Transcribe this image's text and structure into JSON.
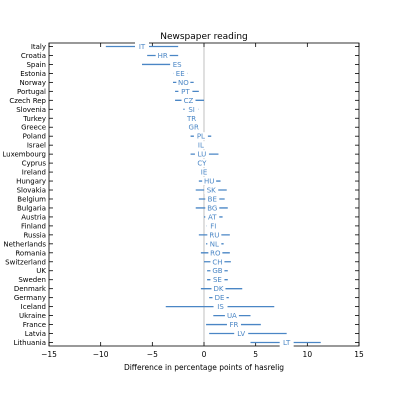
{
  "chart_data": {
    "type": "interval",
    "title": "Newspaper reading",
    "xlabel": "Difference in percentage points of hasrelig",
    "ylabel": "",
    "xlim": [
      -15,
      15
    ],
    "xticks": [
      -15,
      -10,
      -5,
      0,
      5,
      10,
      15
    ],
    "xtick_labels": [
      "−15",
      "−10",
      "−5",
      "0",
      "5",
      "10",
      "15"
    ],
    "reference_line_x": 0,
    "grid": false,
    "color": "#4a86c5",
    "rows": [
      {
        "country": "Italy",
        "code": "IT",
        "low": -9.5,
        "estimate": -6.0,
        "high": -2.5
      },
      {
        "country": "Croatia",
        "code": "HR",
        "low": -5.5,
        "estimate": -4.0,
        "high": -2.5
      },
      {
        "country": "Spain",
        "code": "ES",
        "low": -6.0,
        "estimate": -2.6,
        "high": -2.0
      },
      {
        "country": "Estonia",
        "code": "EE",
        "low": -3.0,
        "estimate": -2.3,
        "high": -1.6
      },
      {
        "country": "Norway",
        "code": "NO",
        "low": -3.0,
        "estimate": -2.0,
        "high": -1.0
      },
      {
        "country": "Portugal",
        "code": "PT",
        "low": -2.8,
        "estimate": -1.8,
        "high": -0.5
      },
      {
        "country": "Czech Rep",
        "code": "CZ",
        "low": -2.8,
        "estimate": -1.5,
        "high": 0.0
      },
      {
        "country": "Slovenia",
        "code": "SI",
        "low": -2.0,
        "estimate": -1.2,
        "high": -0.5
      },
      {
        "country": "Turkey",
        "code": "TR",
        "low": -1.2,
        "estimate": -1.2,
        "high": -1.2
      },
      {
        "country": "Greece",
        "code": "GR",
        "low": -1.0,
        "estimate": -1.0,
        "high": -1.0
      },
      {
        "country": "Poland",
        "code": "PL",
        "low": -1.3,
        "estimate": -0.3,
        "high": 0.7
      },
      {
        "country": "Israel",
        "code": "IL",
        "low": -0.3,
        "estimate": -0.3,
        "high": -0.3
      },
      {
        "country": "Luxembourg",
        "code": "LU",
        "low": -1.3,
        "estimate": -0.2,
        "high": 1.4
      },
      {
        "country": "Cyprus",
        "code": "CY",
        "low": -0.2,
        "estimate": -0.2,
        "high": -0.2
      },
      {
        "country": "Ireland",
        "code": "IE",
        "low": 0.0,
        "estimate": 0.0,
        "high": 0.0
      },
      {
        "country": "Hungary",
        "code": "HU",
        "low": -0.5,
        "estimate": 0.5,
        "high": 1.6
      },
      {
        "country": "Slovakia",
        "code": "SK",
        "low": -0.8,
        "estimate": 0.7,
        "high": 2.2
      },
      {
        "country": "Belgium",
        "code": "BE",
        "low": -0.5,
        "estimate": 0.8,
        "high": 2.0
      },
      {
        "country": "Bulgaria",
        "code": "BG",
        "low": -0.8,
        "estimate": 0.8,
        "high": 2.3
      },
      {
        "country": "Austria",
        "code": "AT",
        "low": 0.0,
        "estimate": 0.8,
        "high": 1.8
      },
      {
        "country": "Finland",
        "code": "FI",
        "low": 0.2,
        "estimate": 0.9,
        "high": 1.5
      },
      {
        "country": "Russia",
        "code": "RU",
        "low": -0.5,
        "estimate": 1.0,
        "high": 2.5
      },
      {
        "country": "Netherlands",
        "code": "NL",
        "low": 0.2,
        "estimate": 1.0,
        "high": 1.9
      },
      {
        "country": "Romania",
        "code": "RO",
        "low": -0.3,
        "estimate": 1.1,
        "high": 2.5
      },
      {
        "country": "Switzerland",
        "code": "CH",
        "low": 0.0,
        "estimate": 1.3,
        "high": 2.6
      },
      {
        "country": "UK",
        "code": "GB",
        "low": 0.3,
        "estimate": 1.3,
        "high": 2.3
      },
      {
        "country": "Sweden",
        "code": "SE",
        "low": 0.3,
        "estimate": 1.3,
        "high": 2.3
      },
      {
        "country": "Denmark",
        "code": "DK",
        "low": -0.3,
        "estimate": 1.4,
        "high": 3.7
      },
      {
        "country": "Germany",
        "code": "DE",
        "low": 0.5,
        "estimate": 1.5,
        "high": 2.4
      },
      {
        "country": "Iceland",
        "code": "IS",
        "low": -3.7,
        "estimate": 1.6,
        "high": 6.8
      },
      {
        "country": "Ukraine",
        "code": "UA",
        "low": 0.9,
        "estimate": 2.7,
        "high": 4.5
      },
      {
        "country": "France",
        "code": "FR",
        "low": 0.2,
        "estimate": 2.9,
        "high": 5.5
      },
      {
        "country": "Latvia",
        "code": "LV",
        "low": 0.5,
        "estimate": 3.6,
        "high": 8.0
      },
      {
        "country": "Lithuania",
        "code": "LT",
        "low": 4.5,
        "estimate": 8.0,
        "high": 11.3
      }
    ]
  }
}
